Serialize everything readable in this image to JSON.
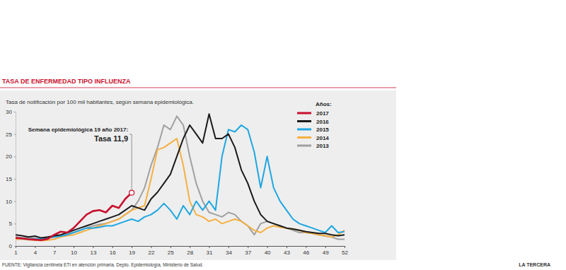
{
  "chart_data": {
    "type": "line",
    "title": "TASA DE ENFERMEDAD TIPO INFLUENZA",
    "subtitle": "Tasa de notificación por 100 mil habitantes, según semana epidemiológica.",
    "legend_title": "Años:",
    "source": "FUENTE: Vigilancia centinela ETI en atención primaria. Depto. Epidemiología, Ministerio de Salud.",
    "credit": "LA TERCERA",
    "annotations": [
      {
        "text": "Semana epidemiológica 19 año 2017:",
        "label": "Tasa 11,9",
        "x": 19,
        "y": 11.9
      }
    ],
    "x": [
      1,
      2,
      3,
      4,
      5,
      6,
      7,
      8,
      9,
      10,
      11,
      12,
      13,
      14,
      15,
      16,
      17,
      18,
      19,
      20,
      21,
      22,
      23,
      24,
      25,
      26,
      27,
      28,
      29,
      30,
      31,
      32,
      33,
      34,
      35,
      36,
      37,
      38,
      39,
      40,
      41,
      42,
      43,
      44,
      45,
      46,
      47,
      48,
      49,
      50,
      51,
      52
    ],
    "xlim": [
      1,
      52
    ],
    "xticks": [
      1,
      4,
      7,
      10,
      13,
      16,
      19,
      22,
      25,
      28,
      31,
      34,
      37,
      40,
      43,
      46,
      49,
      52
    ],
    "ylim": [
      0,
      30
    ],
    "yticks": [
      0,
      5,
      10,
      15,
      20,
      25,
      30
    ],
    "grid": false,
    "legend": "top-right",
    "series": [
      {
        "name": "2017",
        "color": "#c8102e",
        "values": [
          1.8,
          1.7,
          1.5,
          1.4,
          1.3,
          1.6,
          2.5,
          3.2,
          3.0,
          4.0,
          5.5,
          7.0,
          7.8,
          8.0,
          7.5,
          9.0,
          8.5,
          10.5,
          11.9,
          null,
          null,
          null,
          null,
          null,
          null,
          null,
          null,
          null,
          null,
          null,
          null,
          null,
          null,
          null,
          null,
          null,
          null,
          null,
          null,
          null,
          null,
          null,
          null,
          null,
          null,
          null,
          null,
          null,
          null,
          null,
          null,
          null
        ]
      },
      {
        "name": "2016",
        "color": "#1a1a1a",
        "values": [
          2.5,
          2.3,
          2.0,
          2.2,
          1.8,
          2.0,
          2.3,
          2.5,
          3.0,
          3.5,
          4.0,
          4.5,
          5.0,
          5.5,
          6.0,
          6.5,
          7.0,
          8.0,
          9.0,
          8.5,
          8.0,
          10.5,
          12,
          14,
          16,
          20,
          24,
          27,
          25,
          23,
          29.5,
          24,
          24,
          25,
          22,
          17,
          14,
          10,
          7,
          5.5,
          5,
          4.5,
          4,
          3.8,
          3.5,
          3.2,
          3,
          2.8,
          2.8,
          2.5,
          2.3,
          2.5
        ]
      },
      {
        "name": "2015",
        "color": "#1ea7e1",
        "values": [
          1.8,
          1.6,
          1.5,
          1.5,
          1.6,
          1.8,
          2.0,
          2.2,
          2.5,
          3.0,
          3.5,
          4.0,
          4.0,
          4.2,
          4.5,
          4.5,
          5.0,
          5.5,
          6.0,
          5.5,
          6.5,
          7,
          8,
          9.5,
          8,
          6,
          9,
          7,
          10,
          8,
          10,
          8,
          20,
          26,
          25.5,
          27,
          26,
          21,
          13,
          20,
          13,
          10,
          8,
          6,
          5,
          4.5,
          4,
          3.5,
          3,
          4.5,
          3,
          3.2
        ]
      },
      {
        "name": "2014",
        "color": "#f5b041",
        "values": [
          1.5,
          1.5,
          1.4,
          1.3,
          1.2,
          1.3,
          1.5,
          2,
          2.3,
          2.5,
          3,
          3.5,
          4,
          4.5,
          5,
          5.5,
          6,
          7,
          8,
          8.5,
          9,
          15,
          21.5,
          22,
          23,
          24,
          18,
          10,
          7,
          6.5,
          5.5,
          6,
          5,
          5.5,
          6,
          5.5,
          4.5,
          3.5,
          3,
          4,
          4.5,
          4.2,
          4,
          3.8,
          3.5,
          3,
          2.8,
          2.5,
          2.3,
          2,
          2.5,
          3.5
        ]
      },
      {
        "name": "2013",
        "color": "#a0a0a0",
        "values": [
          2.0,
          1.8,
          1.8,
          1.7,
          1.6,
          1.8,
          2.0,
          2.3,
          2.8,
          3.0,
          3.5,
          4.0,
          4.5,
          4.8,
          5,
          5.5,
          6,
          7,
          8,
          10,
          13,
          18,
          22,
          27,
          26,
          29,
          27,
          20,
          14,
          10,
          7.5,
          7,
          6.5,
          7.5,
          7,
          5.5,
          4.5,
          2.5,
          5,
          5.5,
          5,
          4.5,
          4,
          3.5,
          3,
          3,
          2.8,
          2.5,
          2.2,
          2,
          1.5,
          1.5
        ]
      }
    ]
  }
}
